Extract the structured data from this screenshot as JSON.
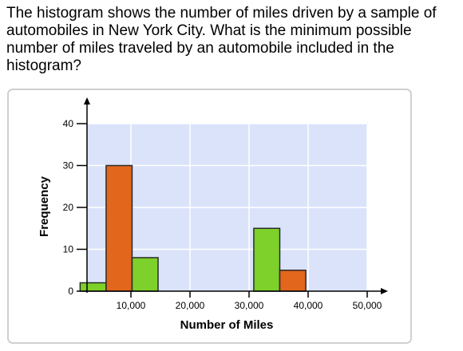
{
  "question": {
    "text": "The histogram shows the number of miles driven by a sample of automobiles in New York City. What is the minimum possible number of miles traveled by an automobile included in the histogram?"
  },
  "chart_data": {
    "type": "bar",
    "xlabel": "Number of Miles",
    "ylabel": "Frequency",
    "ylim": [
      0,
      40
    ],
    "yticks": [
      0,
      10,
      20,
      30,
      40
    ],
    "xlim": [
      0,
      50000
    ],
    "xticks": [
      10000,
      20000,
      30000,
      40000,
      50000
    ],
    "xtick_labels": [
      "10,000",
      "20,000",
      "30,000",
      "40,000",
      "50,000"
    ],
    "bin_width": 4400,
    "grid": true,
    "plot_background": "#dbe3fa",
    "colors": {
      "green": "#7dd12a",
      "orange": "#e2661c",
      "bar_border": "#2b2b2b",
      "grid": "#ffffff",
      "axis": "#000000"
    },
    "bars": [
      {
        "start": 1400,
        "value": 2,
        "color": "green"
      },
      {
        "start": 5800,
        "value": 30,
        "color": "orange"
      },
      {
        "start": 10200,
        "value": 8,
        "color": "green"
      },
      {
        "start": 30800,
        "value": 15,
        "color": "green"
      },
      {
        "start": 35200,
        "value": 5,
        "color": "orange"
      }
    ]
  }
}
